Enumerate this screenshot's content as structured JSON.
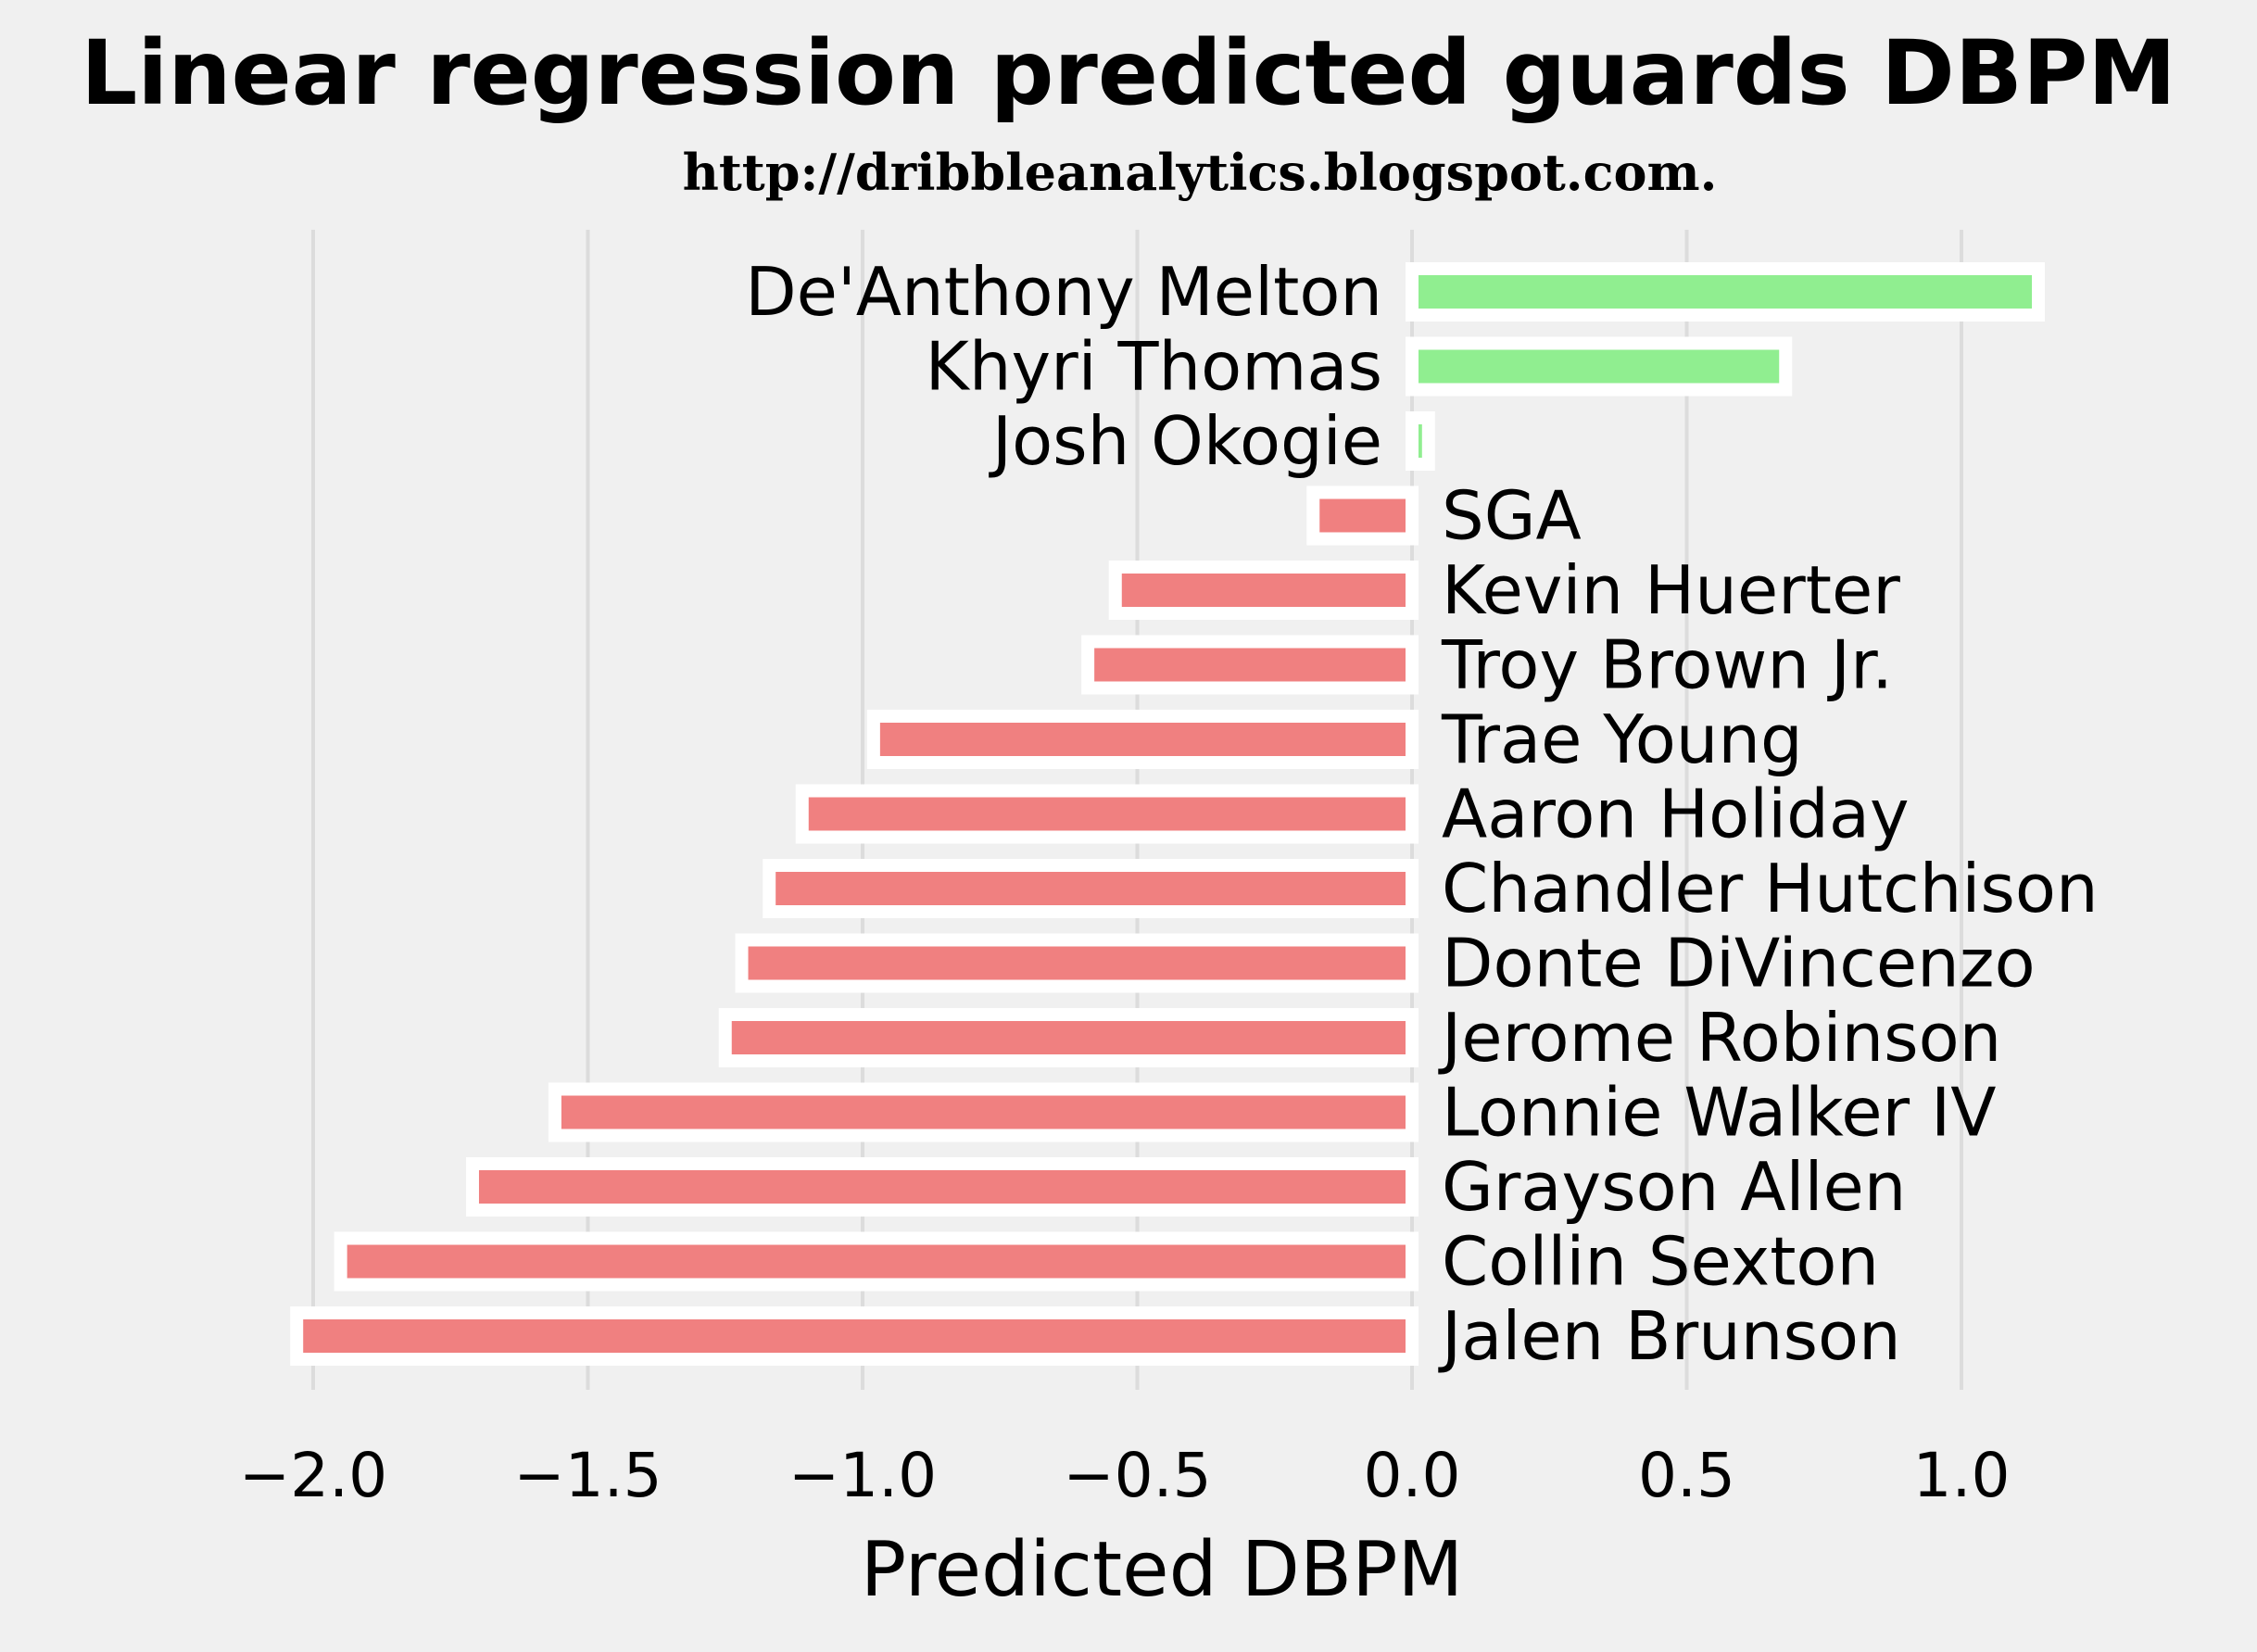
{
  "chart_data": {
    "type": "bar",
    "orientation": "horizontal",
    "title": "Linear regression predicted guards DBPM",
    "subtitle": "http://dribbleanalytics.blogspot.com.",
    "xlabel": "Predicted DBPM",
    "xlim": [
      -2.06,
      1.45
    ],
    "xticks": [
      -2.0,
      -1.5,
      -1.0,
      -0.5,
      0.0,
      0.5,
      1.0
    ],
    "xtick_labels": [
      "−2.0",
      "−1.5",
      "−1.0",
      "−0.5",
      "0.0",
      "0.5",
      "1.0"
    ],
    "grid": "vertical",
    "colors": {
      "positive": "#90ee90",
      "negative": "#f08080",
      "edge": "#ffffff",
      "background": "#f0f0f0"
    },
    "categories": [
      "De'Anthony Melton",
      "Khyri Thomas",
      "Josh Okogie",
      "SGA",
      "Kevin Huerter",
      "Troy Brown Jr.",
      "Trae Young",
      "Aaron Holiday",
      "Chandler Hutchison",
      "Donte DiVincenzo",
      "Jerome Robinson",
      "Lonnie Walker IV",
      "Grayson Allen",
      "Collin Sexton",
      "Jalen Brunson"
    ],
    "values": [
      1.14,
      0.68,
      0.03,
      -0.18,
      -0.54,
      -0.59,
      -0.98,
      -1.11,
      -1.17,
      -1.22,
      -1.25,
      -1.56,
      -1.71,
      -1.95,
      -2.03
    ]
  }
}
